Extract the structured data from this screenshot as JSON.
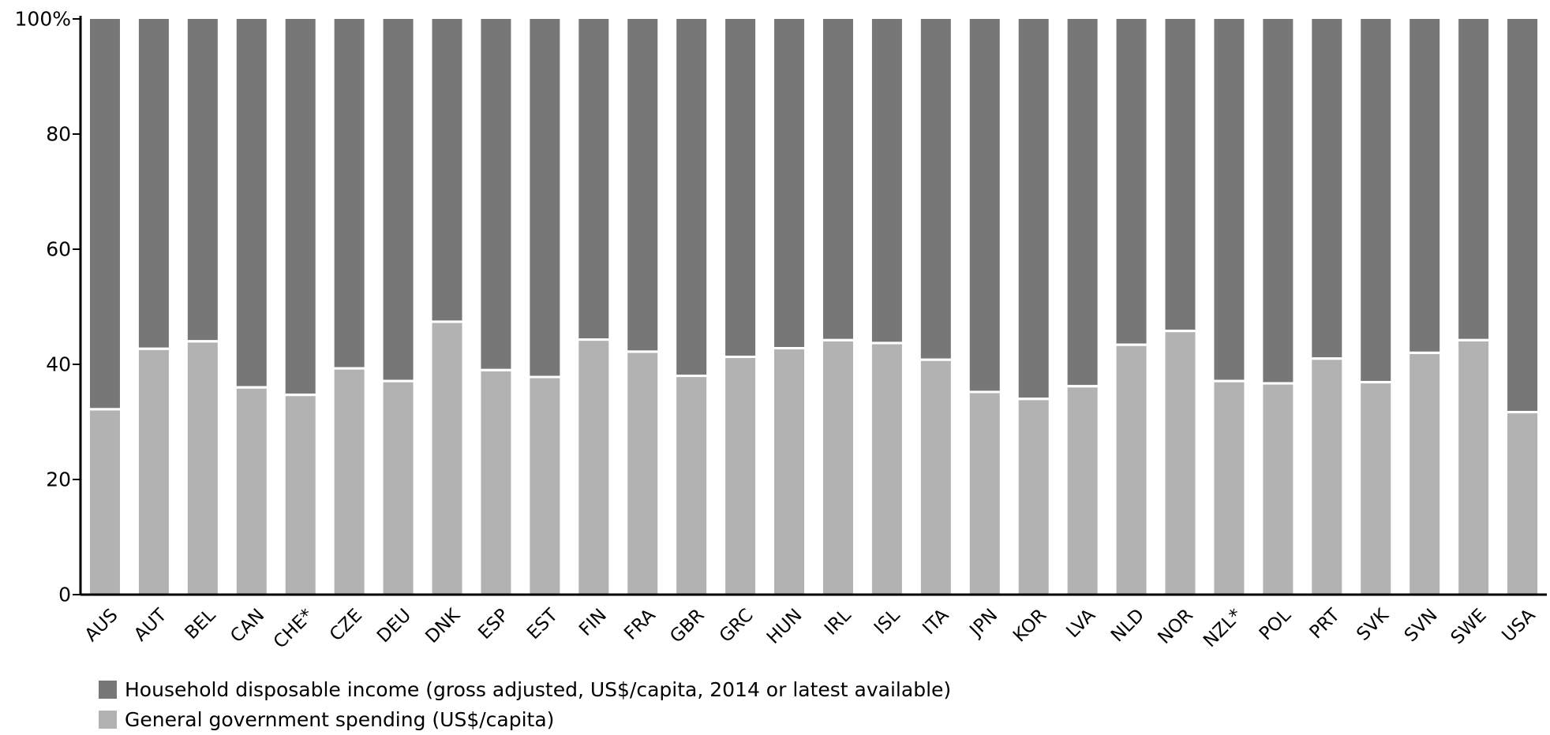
{
  "chart_data": {
    "type": "bar",
    "stacked": true,
    "normalized": true,
    "categories": [
      "AUS",
      "AUT",
      "BEL",
      "CAN",
      "CHE*",
      "CZE",
      "DEU",
      "DNK",
      "ESP",
      "EST",
      "FIN",
      "FRA",
      "GBR",
      "GRC",
      "HUN",
      "IRL",
      "ISL",
      "ITA",
      "JPN",
      "KOR",
      "LVA",
      "NLD",
      "NOR",
      "NZL*",
      "POL",
      "PRT",
      "SVK",
      "SVN",
      "SWE",
      "USA"
    ],
    "series": [
      {
        "name": "General government spending (US$/capita)",
        "color": "#b2b2b2",
        "values": [
          32,
          42.5,
          43.8,
          35.8,
          34.5,
          39.1,
          36.9,
          47.2,
          38.8,
          37.6,
          44.1,
          42,
          37.8,
          41.1,
          42.6,
          44,
          43.5,
          40.6,
          35,
          33.8,
          36,
          43.2,
          45.6,
          36.9,
          36.5,
          40.8,
          36.7,
          41.8,
          44,
          31.5
        ]
      },
      {
        "name": "Household disposable income (gross adjusted, US$/capita, 2014 or latest available)",
        "color": "#777777",
        "values": [
          68,
          57.5,
          56.2,
          64.2,
          65.5,
          60.9,
          63.1,
          52.8,
          61.2,
          62.4,
          55.9,
          58,
          62.2,
          58.9,
          57.4,
          56,
          56.5,
          59.4,
          65,
          66.2,
          64,
          56.8,
          54.4,
          63.1,
          63.5,
          59.2,
          63.3,
          58.2,
          56,
          68.5
        ]
      }
    ],
    "ylim": [
      0,
      100
    ],
    "yticks": [
      "0",
      "20",
      "40",
      "60",
      "80",
      "100%"
    ],
    "ytick_values": [
      0,
      20,
      40,
      60,
      80,
      100
    ],
    "legend_placement": "bottom-left",
    "grid": false
  }
}
